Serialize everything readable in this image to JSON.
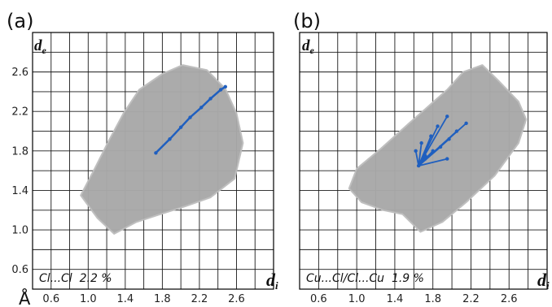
{
  "unit_label": "Å",
  "colors": {
    "grey_cloud": "#a9a9a9",
    "highlight": "#1f5fbf",
    "grid": "#1a1a1a",
    "frame": "#000000"
  },
  "chart_data": [
    {
      "type": "scatter",
      "panel_label": "(a)",
      "annotation": "Cl...Cl  2.2 %",
      "xlabel": "d",
      "xlabel_sub": "i",
      "ylabel": "d",
      "ylabel_sub": "e",
      "xlim": [
        0.4,
        3.0
      ],
      "ylim": [
        0.4,
        3.0
      ],
      "x_ticks": [
        "0.6",
        "1.0",
        "1.4",
        "1.8",
        "2.2",
        "2.6"
      ],
      "y_ticks": [
        "0.6",
        "1.0",
        "1.4",
        "1.8",
        "2.2",
        "2.6"
      ],
      "grid": true,
      "series": [
        {
          "points": [
            [
              1.28,
              0.96
            ],
            [
              1.52,
              1.08
            ],
            [
              1.75,
              1.15
            ],
            [
              2.05,
              1.24
            ],
            [
              2.32,
              1.33
            ],
            [
              2.58,
              1.52
            ],
            [
              2.67,
              1.88
            ],
            [
              2.6,
              2.18
            ],
            [
              2.48,
              2.43
            ],
            [
              2.28,
              2.62
            ],
            [
              2.02,
              2.67
            ],
            [
              1.8,
              2.58
            ],
            [
              1.55,
              2.42
            ],
            [
              1.38,
              2.18
            ],
            [
              1.22,
              1.9
            ],
            [
              1.07,
              1.62
            ],
            [
              0.92,
              1.35
            ],
            [
              1.1,
              1.12
            ]
          ]
        },
        {
          "points": [
            [
              1.73,
              1.78
            ],
            [
              1.88,
              1.92
            ],
            [
              2.0,
              2.04
            ],
            [
              2.1,
              2.14
            ],
            [
              2.22,
              2.24
            ],
            [
              2.32,
              2.33
            ],
            [
              2.43,
              2.42
            ],
            [
              2.48,
              2.45
            ]
          ]
        }
      ]
    },
    {
      "type": "scatter",
      "panel_label": "(b)",
      "annotation": "Cu...Cl/Cl...Cu  1.9 %",
      "xlabel": "d",
      "xlabel_sub": "i",
      "ylabel": "d",
      "ylabel_sub": "e",
      "xlim": [
        0.4,
        3.0
      ],
      "ylim": [
        0.4,
        3.0
      ],
      "x_ticks": [
        "0.6",
        "1.0",
        "1.4",
        "1.8",
        "2.2",
        "2.6"
      ],
      "y_ticks": [
        "0.6",
        "1.0",
        "1.4",
        "1.8",
        "2.2",
        "2.6"
      ],
      "grid": true,
      "series": [
        {
          "points": [
            [
              1.67,
              0.98
            ],
            [
              1.9,
              1.08
            ],
            [
              2.15,
              1.28
            ],
            [
              2.45,
              1.55
            ],
            [
              2.7,
              1.88
            ],
            [
              2.78,
              2.12
            ],
            [
              2.7,
              2.3
            ],
            [
              2.48,
              2.52
            ],
            [
              2.32,
              2.67
            ],
            [
              2.12,
              2.6
            ],
            [
              1.95,
              2.42
            ],
            [
              1.75,
              2.25
            ],
            [
              1.55,
              2.08
            ],
            [
              1.25,
              1.82
            ],
            [
              1.0,
              1.62
            ],
            [
              0.92,
              1.42
            ],
            [
              1.05,
              1.28
            ],
            [
              1.28,
              1.2
            ],
            [
              1.48,
              1.16
            ]
          ]
        },
        {
          "points": [
            [
              1.65,
              1.65
            ],
            [
              1.72,
              1.75
            ],
            [
              1.8,
              1.8
            ],
            [
              1.88,
              1.84
            ],
            [
              1.97,
              1.92
            ],
            [
              2.05,
              2.0
            ],
            [
              2.15,
              2.08
            ],
            [
              1.95,
              2.15
            ],
            [
              1.85,
              2.05
            ],
            [
              1.78,
              1.95
            ],
            [
              1.68,
              1.88
            ],
            [
              1.72,
              1.72
            ],
            [
              1.95,
              1.72
            ],
            [
              1.62,
              1.8
            ]
          ]
        }
      ]
    }
  ]
}
